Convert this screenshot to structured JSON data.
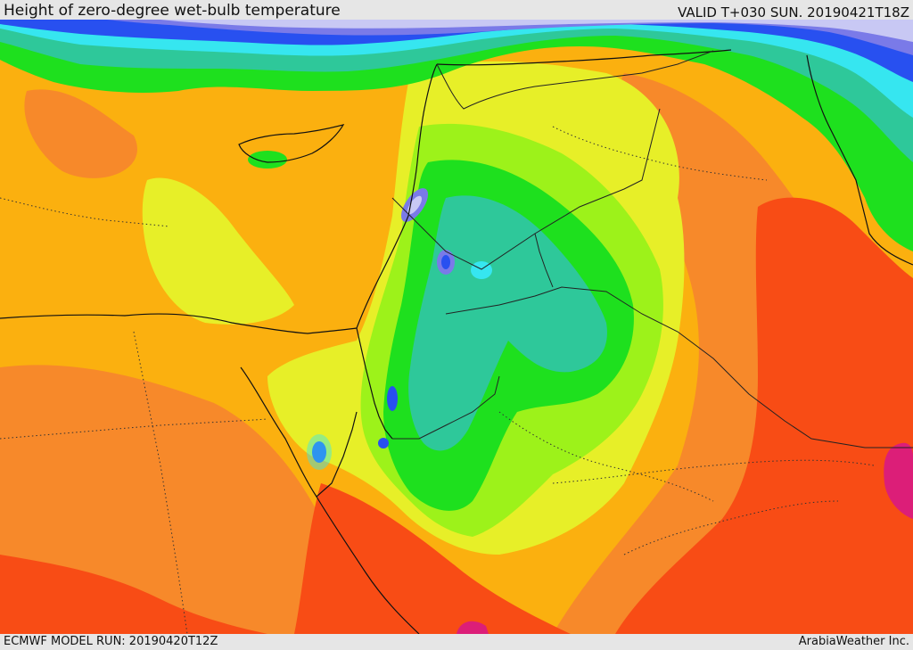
{
  "header": {
    "title": "Height of zero-degree wet-bulb temperature",
    "valid": "VALID T+030 SUN. 20190421T18Z"
  },
  "footer": {
    "model_run": "ECMWF MODEL RUN: 20190420T12Z",
    "credit": "ArabiaWeather Inc."
  },
  "map": {
    "field": "zero-degree wet-bulb height",
    "palette": {
      "magenta": "#dc1e78",
      "red": "#f84c15",
      "dark_orange": "#f7892a",
      "orange": "#fbb00f",
      "yellow": "#e7ef28",
      "lime": "#9df21a",
      "green": "#1ee01e",
      "teal": "#2ec89a",
      "cyan": "#36e6f0",
      "blue": "#2850f0",
      "violet": "#7a7ae8",
      "lavender": "#c8c8f4",
      "coast_line": "#111111",
      "border_line": "#222222"
    }
  }
}
